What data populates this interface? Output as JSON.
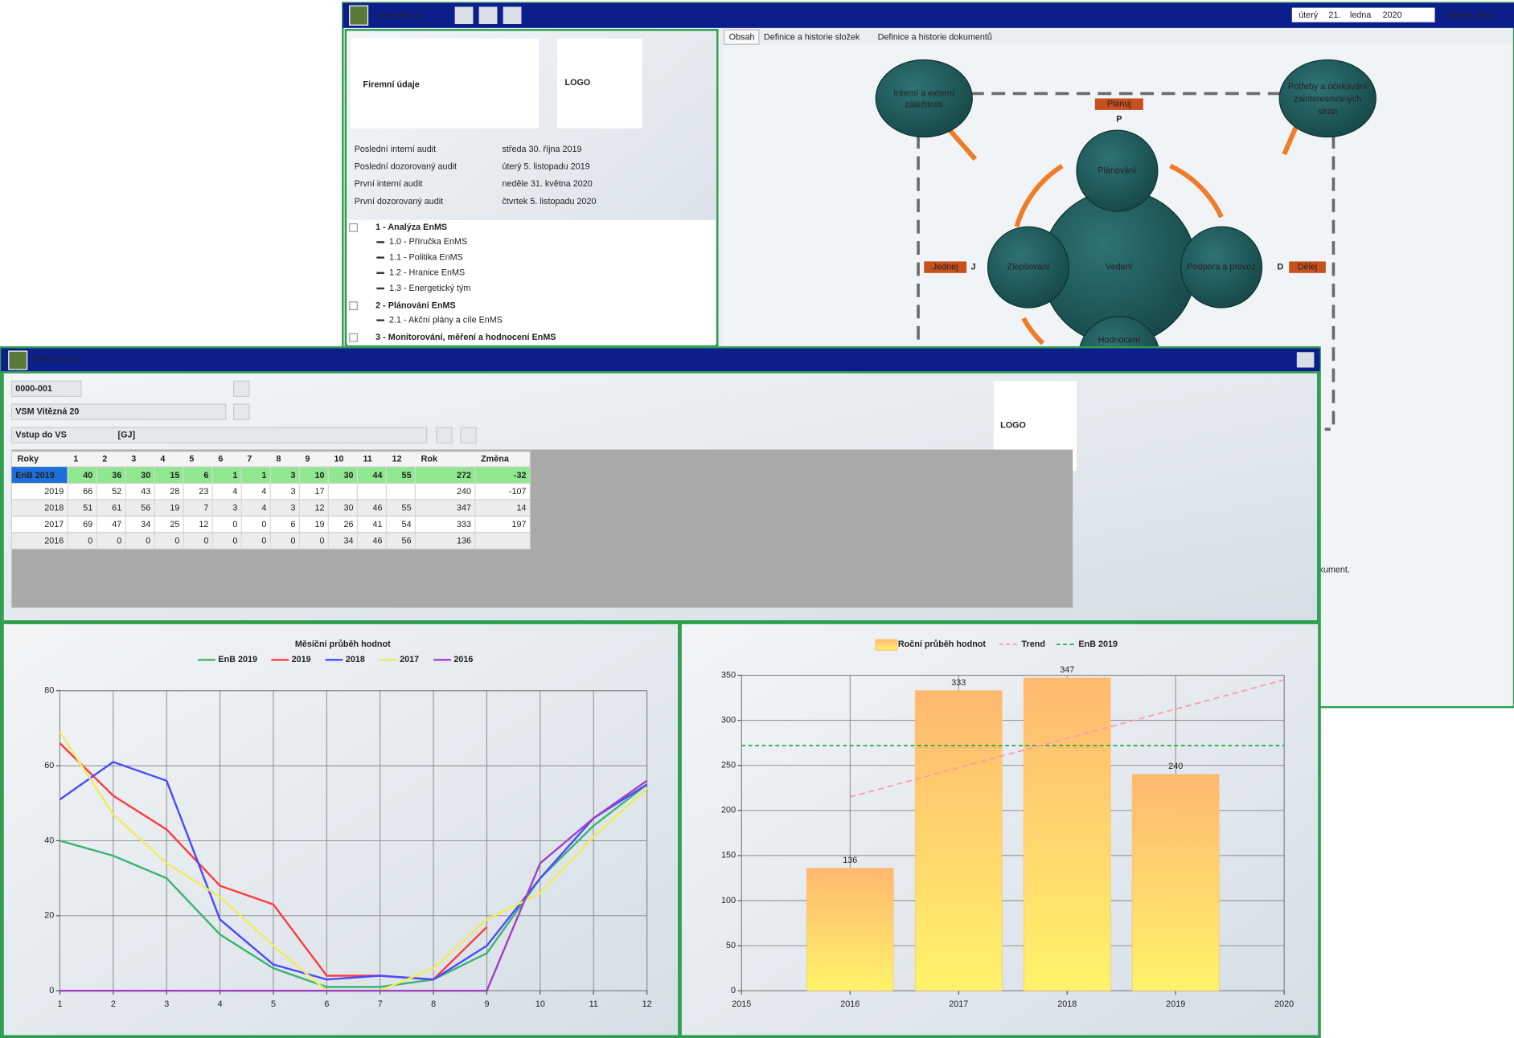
{
  "back_window": {
    "title": "GrexSaccus",
    "date": {
      "weekday": "úterý",
      "day": "21.",
      "month": "ledna",
      "year": "2020"
    },
    "data_source": "Datový zdroj",
    "company": "Firemní údaje",
    "logo": "LOGO",
    "audits": [
      {
        "label": "Poslední interní audit",
        "date": "středa 30. října 2019"
      },
      {
        "label": "Poslední dozorovaný audit",
        "date": "úterý 5. listopadu 2019"
      },
      {
        "label": "První interní audit",
        "date": "neděle 31. května 2020"
      },
      {
        "label": "První dozorovaný audit",
        "date": "čtvrtek 5. listopadu 2020"
      }
    ],
    "tree": [
      {
        "label": "1 - Analýza EnMS",
        "children": [
          "1.0 - Příručka EnMS",
          "1.1 - Politika EnMS",
          "1.2 - Hranice EnMS",
          "1.3 - Energetický tým"
        ]
      },
      {
        "label": "2 - Plánování EnMS",
        "children": [
          "2.1 - Akční plány a cíle EnMS"
        ]
      },
      {
        "label": "3 - Monitorování, měření a hodnocení EnMS",
        "children": []
      }
    ],
    "tabs": [
      "Obsah",
      "Definice a historie složek",
      "Definice a historie dokumentů"
    ],
    "diagram": {
      "issues": [
        "Interní a externí",
        "záležitosti"
      ],
      "needs": [
        "Potřeby a očekávání",
        "zainteresovaných",
        "stran"
      ],
      "plan_tag": "Plánuj",
      "plan_letter": "P",
      "act_tag": "Jednej",
      "act_letter": "J",
      "do_tag": "Dělej",
      "do_letter": "D",
      "planning": "Plánování",
      "improvement": "Zlepšování",
      "leadership": "Vedení",
      "support": "Podpora a provoz",
      "evaluation": "Hodnocení"
    },
    "note": "kument."
  },
  "front_window": {
    "title": "GrexSaccus",
    "code": "0000-001",
    "site": "VSM Vítězná 20",
    "input": "Vstup do VS",
    "unit": "[GJ]",
    "logo": "LOGO",
    "table": {
      "header": [
        "Roky",
        1,
        2,
        3,
        4,
        5,
        6,
        7,
        8,
        9,
        10,
        11,
        12,
        "Rok",
        "Změna"
      ],
      "rows": [
        [
          "EnB 2019",
          40,
          36,
          30,
          15,
          6,
          1,
          1,
          3,
          10,
          30,
          44,
          55,
          272,
          -32
        ],
        [
          2019,
          66,
          52,
          43,
          28,
          23,
          4,
          4,
          3,
          17,
          null,
          null,
          null,
          240,
          -107
        ],
        [
          2018,
          51,
          61,
          56,
          19,
          7,
          3,
          4,
          3,
          12,
          30,
          46,
          55,
          347,
          14
        ],
        [
          2017,
          69,
          47,
          34,
          25,
          12,
          0,
          0,
          6,
          19,
          26,
          41,
          54,
          333,
          197
        ],
        [
          2016,
          0,
          0,
          0,
          0,
          0,
          0,
          0,
          0,
          0,
          34,
          46,
          56,
          136,
          null
        ]
      ]
    }
  },
  "line_chart": {
    "type": "line",
    "title": "Měsíční průběh hodnot",
    "x": [
      1,
      2,
      3,
      4,
      5,
      6,
      7,
      8,
      9,
      10,
      11,
      12
    ],
    "xlim": [
      1,
      12
    ],
    "xticks": [
      1,
      2,
      3,
      4,
      5,
      6,
      7,
      8,
      9,
      10,
      11,
      12
    ],
    "ylim": [
      0,
      80
    ],
    "yticks": [
      0,
      20,
      40,
      60,
      80
    ],
    "grid": true,
    "series": [
      {
        "name": "EnB 2019",
        "color": "#3cb371",
        "values": [
          40,
          36,
          30,
          15,
          6,
          1,
          1,
          3,
          10,
          30,
          44,
          55
        ]
      },
      {
        "name": "2019",
        "color": "#ff3b3b",
        "values": [
          66,
          52,
          43,
          28,
          23,
          4,
          4,
          3,
          17,
          null,
          null,
          null
        ]
      },
      {
        "name": "2018",
        "color": "#4a4aff",
        "values": [
          51,
          61,
          56,
          19,
          7,
          3,
          4,
          3,
          12,
          30,
          46,
          55
        ]
      },
      {
        "name": "2017",
        "color": "#eded5a",
        "values": [
          69,
          47,
          34,
          25,
          12,
          0,
          0,
          6,
          19,
          26,
          41,
          54
        ]
      },
      {
        "name": "2016",
        "color": "#a040c0",
        "values": [
          0,
          0,
          0,
          0,
          0,
          0,
          0,
          0,
          0,
          34,
          46,
          56
        ]
      }
    ]
  },
  "bar_chart": {
    "type": "bar",
    "title": "Roční průběh hodnot",
    "x": [
      2016,
      2017,
      2018,
      2019
    ],
    "values": [
      136,
      333,
      347,
      240
    ],
    "color": "#ffbf70",
    "xlim": [
      2015,
      2020
    ],
    "xticks": [
      2015,
      2016,
      2017,
      2018,
      2019,
      2020
    ],
    "ylim": [
      0,
      350
    ],
    "yticks": [
      0,
      50,
      100,
      150,
      200,
      250,
      300,
      350
    ],
    "grid": true,
    "trend": {
      "name": "Trend",
      "color": "#ff9aa8",
      "x": [
        2016,
        2020
      ],
      "values": [
        215,
        345
      ]
    },
    "baseline": {
      "name": "EnB 2019",
      "color": "#2aa84a",
      "value": 272
    }
  }
}
